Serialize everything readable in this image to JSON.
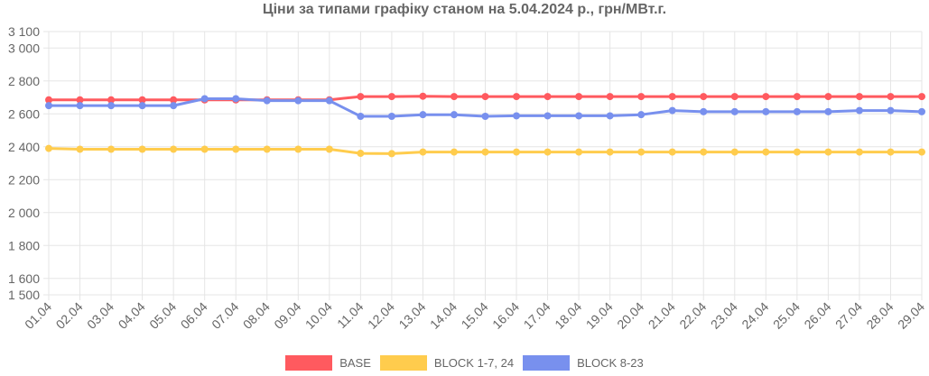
{
  "chart_data": {
    "type": "line",
    "title": "Ціни за типами графіку станом на 5.04.2024 р., грн/МВт.г.",
    "categories": [
      "01.04",
      "02.04",
      "03.04",
      "04.04",
      "05.04",
      "06.04",
      "07.04",
      "08.04",
      "09.04",
      "10.04",
      "11.04",
      "12.04",
      "13.04",
      "14.04",
      "15.04",
      "16.04",
      "17.04",
      "18.04",
      "19.04",
      "20.04",
      "21.04",
      "22.04",
      "23.04",
      "24.04",
      "25.04",
      "26.04",
      "27.04",
      "28.04",
      "29.04"
    ],
    "ylim": [
      1500,
      3100
    ],
    "yticks": [
      1500,
      1600,
      1800,
      2000,
      2200,
      2400,
      2600,
      2800,
      3000,
      3100
    ],
    "ytick_labels": [
      "1 500",
      "1 600",
      "1 800",
      "2 000",
      "2 200",
      "2 400",
      "2 600",
      "2 800",
      "3 000",
      "3 100"
    ],
    "grid": true,
    "legend_position": "bottom",
    "series": [
      {
        "name": "BASE",
        "color": "#ff5a5f",
        "values": [
          2685,
          2685,
          2685,
          2685,
          2685,
          2685,
          2685,
          2685,
          2685,
          2685,
          2705,
          2705,
          2707,
          2705,
          2705,
          2705,
          2705,
          2705,
          2705,
          2705,
          2705,
          2705,
          2705,
          2705,
          2705,
          2705,
          2705,
          2705,
          2705
        ]
      },
      {
        "name": "BLOCK 1-7, 24",
        "color": "#ffcc4d",
        "values": [
          2390,
          2385,
          2385,
          2385,
          2385,
          2385,
          2385,
          2385,
          2385,
          2385,
          2360,
          2358,
          2368,
          2368,
          2368,
          2368,
          2368,
          2368,
          2368,
          2368,
          2368,
          2368,
          2368,
          2368,
          2368,
          2368,
          2368,
          2368,
          2368
        ]
      },
      {
        "name": "BLOCK 8-23",
        "color": "#7890ee",
        "values": [
          2650,
          2650,
          2650,
          2650,
          2650,
          2692,
          2692,
          2680,
          2680,
          2680,
          2585,
          2585,
          2595,
          2595,
          2585,
          2588,
          2588,
          2588,
          2588,
          2595,
          2620,
          2613,
          2613,
          2613,
          2613,
          2613,
          2620,
          2620,
          2613
        ]
      }
    ]
  }
}
